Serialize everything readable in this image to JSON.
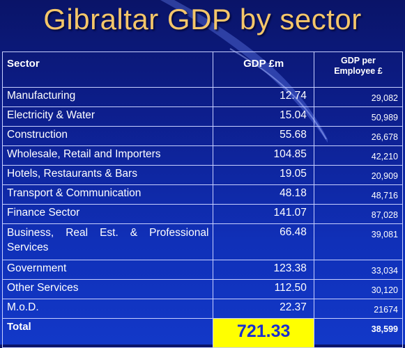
{
  "title": "Gibraltar GDP by sector",
  "table": {
    "headers": {
      "sector": "Sector",
      "gdp": "GDP £m",
      "per_employee_line1": "GDP per",
      "per_employee_line2": "Employee £"
    },
    "rows": [
      {
        "sector": "Manufacturing",
        "gdp": "12.74",
        "per_employee": "29,082"
      },
      {
        "sector": "Electricity & Water",
        "gdp": "15.04",
        "per_employee": "50,989"
      },
      {
        "sector": "Construction",
        "gdp": "55.68",
        "per_employee": "26,678"
      },
      {
        "sector": "Wholesale, Retail and Importers",
        "gdp": "104.85",
        "per_employee": "42,210"
      },
      {
        "sector": "Hotels, Restaurants & Bars",
        "gdp": "19.05",
        "per_employee": "20,909"
      },
      {
        "sector": "Transport & Communication",
        "gdp": "48.18",
        "per_employee": "48,716"
      },
      {
        "sector": "Finance Sector",
        "gdp": "141.07",
        "per_employee": "87,028"
      },
      {
        "sector": "Business, Real Est. & Professional Services",
        "gdp": "66.48",
        "per_employee": "39,081"
      },
      {
        "sector": "Government",
        "gdp": "123.38",
        "per_employee": "33,034"
      },
      {
        "sector": "Other Services",
        "gdp": "112.50",
        "per_employee": "30,120"
      },
      {
        "sector": "M.o.D.",
        "gdp": "22.37",
        "per_employee": "21674"
      }
    ],
    "total": {
      "label": "Total",
      "gdp": "721.33",
      "per_employee": "38,599"
    }
  },
  "colors": {
    "title": "#f4c66a",
    "background": "#0d1f8f",
    "total_highlight": "#ffff00",
    "total_value": "#1a2fd0"
  }
}
